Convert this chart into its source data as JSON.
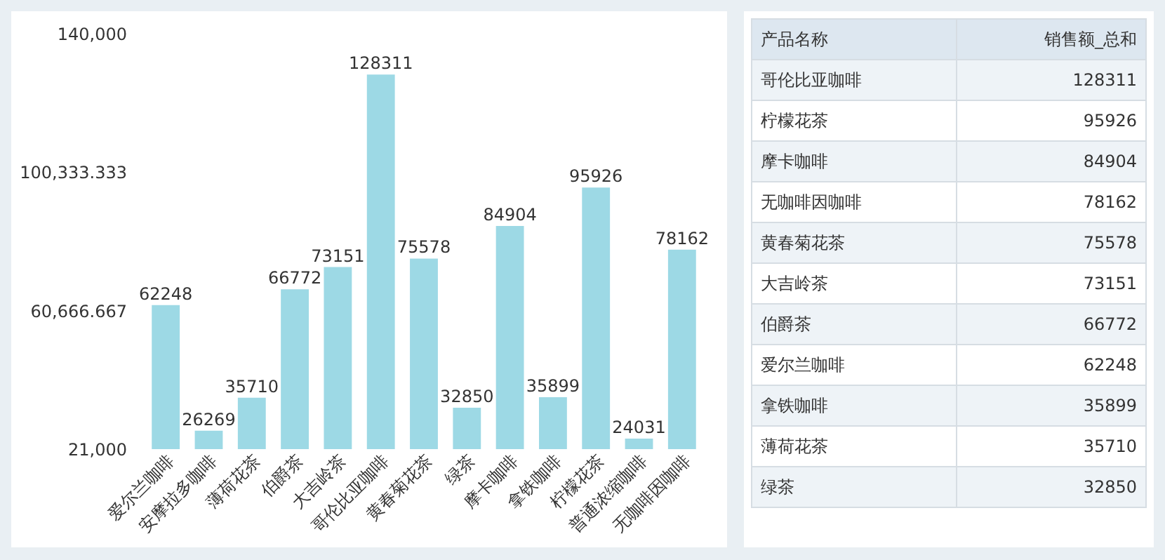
{
  "chart_data": [
    {
      "type": "bar",
      "categories": [
        "爱尔兰咖啡",
        "安摩拉多咖啡",
        "薄荷花茶",
        "伯爵茶",
        "大吉岭茶",
        "哥伦比亚咖啡",
        "黄春菊花茶",
        "绿茶",
        "摩卡咖啡",
        "拿铁咖啡",
        "柠檬花茶",
        "普通浓缩咖啡",
        "无咖啡因咖啡"
      ],
      "values": [
        62248,
        26269,
        35710,
        66772,
        73151,
        128311,
        75578,
        32850,
        84904,
        35899,
        95926,
        24031,
        78162
      ],
      "color": "#9dd9e5",
      "ylim": [
        21000,
        140000
      ],
      "yticks": [
        {
          "value": 21000,
          "label": "21,000"
        },
        {
          "value": 60666.667,
          "label": "60,666.667"
        },
        {
          "value": 100333.333,
          "label": "100,333.333"
        },
        {
          "value": 140000,
          "label": "140,000"
        }
      ],
      "data_labels": true,
      "grid": false
    },
    {
      "type": "other",
      "xlabel": "产品名称",
      "ylabel": "销售额_总和",
      "categories": [
        "哥伦比亚咖啡",
        "柠檬花茶",
        "摩卡咖啡",
        "无咖啡因咖啡",
        "黄春菊花茶",
        "大吉岭茶",
        "伯爵茶",
        "爱尔兰咖啡",
        "拿铁咖啡",
        "薄荷花茶",
        "绿茶"
      ],
      "values": [
        128311,
        95926,
        84904,
        78162,
        75578,
        73151,
        66772,
        62248,
        35899,
        35710,
        32850
      ],
      "data_labels": true
    }
  ]
}
